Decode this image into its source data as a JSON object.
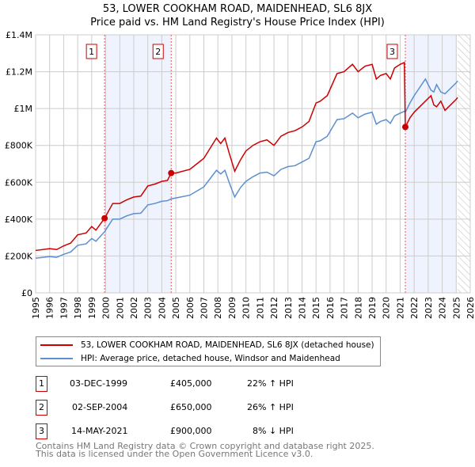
{
  "chart_data": {
    "type": "line",
    "title": "53, LOWER COOKHAM ROAD, MAIDENHEAD, SL6 8JX",
    "subtitle": "Price paid vs. HM Land Registry's House Price Index (HPI)",
    "xlim": [
      1995,
      2026
    ],
    "ylim": [
      0,
      1400000
    ],
    "x_ticks": [
      "1995",
      "1996",
      "1997",
      "1998",
      "1999",
      "2000",
      "2001",
      "2002",
      "2003",
      "2004",
      "2005",
      "2006",
      "2007",
      "2008",
      "2009",
      "2010",
      "2011",
      "2012",
      "2013",
      "2014",
      "2015",
      "2016",
      "2017",
      "2018",
      "2019",
      "2020",
      "2021",
      "2022",
      "2023",
      "2024",
      "2025",
      "2026"
    ],
    "y_ticks": [
      {
        "v": 0,
        "label": "£0"
      },
      {
        "v": 200000,
        "label": "£200K"
      },
      {
        "v": 400000,
        "label": "£400K"
      },
      {
        "v": 600000,
        "label": "£600K"
      },
      {
        "v": 800000,
        "label": "£800K"
      },
      {
        "v": 1000000,
        "label": "£1M"
      },
      {
        "v": 1200000,
        "label": "£1.2M"
      },
      {
        "v": 1400000,
        "label": "£1.4M"
      }
    ],
    "series": [
      {
        "name": "53, LOWER COOKHAM ROAD, MAIDENHEAD, SL6 8JX (detached house)",
        "color": "#cc0000",
        "x": [
          1995,
          1996,
          1996.5,
          1997,
          1997.5,
          1998,
          1998.6,
          1999,
          1999.3,
          1999.92,
          2000.5,
          2001,
          2001.5,
          2002,
          2002.5,
          2003,
          2003.5,
          2004,
          2004.4,
          2004.67,
          2005,
          2006,
          2007,
          2007.9,
          2008.2,
          2008.5,
          2008.8,
          2009.2,
          2009.6,
          2010,
          2010.5,
          2011,
          2011.5,
          2012,
          2012.5,
          2013,
          2013.5,
          2014,
          2014.5,
          2015,
          2015.3,
          2015.8,
          2016.5,
          2017,
          2017.6,
          2018,
          2018.5,
          2019,
          2019.3,
          2019.6,
          2020,
          2020.3,
          2020.6,
          2021,
          2021.3,
          2021.37,
          2021.7,
          2022,
          2022.8,
          2023.2,
          2023.4,
          2023.6,
          2023.9,
          2024.2,
          2025,
          2025.1
        ],
        "y": [
          230000,
          240000,
          235000,
          255000,
          270000,
          315000,
          325000,
          360000,
          340000,
          405000,
          485000,
          485000,
          505000,
          520000,
          525000,
          580000,
          590000,
          605000,
          610000,
          650000,
          650000,
          670000,
          730000,
          840000,
          810000,
          840000,
          760000,
          660000,
          720000,
          770000,
          800000,
          820000,
          830000,
          800000,
          850000,
          870000,
          880000,
          900000,
          930000,
          1030000,
          1040000,
          1070000,
          1190000,
          1200000,
          1240000,
          1200000,
          1230000,
          1240000,
          1160000,
          1180000,
          1190000,
          1160000,
          1220000,
          1240000,
          1250000,
          900000,
          950000,
          980000,
          1040000,
          1070000,
          1020000,
          1010000,
          1040000,
          990000,
          1050000,
          1060000
        ]
      },
      {
        "name": "HPI: Average price, detached house, Windsor and Maidenhead",
        "color": "#5b8fd0",
        "x": [
          1995,
          1996,
          1996.5,
          1997,
          1997.5,
          1998,
          1998.6,
          1999,
          1999.3,
          1999.92,
          2000.5,
          2001,
          2001.5,
          2002,
          2002.5,
          2003,
          2003.5,
          2004,
          2004.4,
          2004.67,
          2005,
          2006,
          2007,
          2007.9,
          2008.2,
          2008.5,
          2008.8,
          2009.2,
          2009.6,
          2010,
          2010.5,
          2011,
          2011.5,
          2012,
          2012.5,
          2013,
          2013.5,
          2014,
          2014.5,
          2015,
          2015.3,
          2015.8,
          2016.5,
          2017,
          2017.6,
          2018,
          2018.5,
          2019,
          2019.3,
          2019.6,
          2020,
          2020.3,
          2020.6,
          2021,
          2021.3,
          2021.37,
          2021.7,
          2022,
          2022.8,
          2023.2,
          2023.4,
          2023.6,
          2023.9,
          2024.2,
          2025,
          2025.1
        ],
        "y": [
          188000,
          197000,
          193000,
          209000,
          222000,
          258000,
          266000,
          295000,
          280000,
          332000,
          400000,
          400000,
          418000,
          430000,
          432000,
          477000,
          485000,
          497000,
          500000,
          510000,
          515000,
          530000,
          575000,
          665000,
          645000,
          665000,
          600000,
          520000,
          570000,
          605000,
          630000,
          650000,
          655000,
          635000,
          670000,
          685000,
          690000,
          710000,
          730000,
          820000,
          825000,
          850000,
          940000,
          945000,
          975000,
          950000,
          970000,
          980000,
          915000,
          930000,
          940000,
          920000,
          960000,
          975000,
          985000,
          980000,
          1030000,
          1070000,
          1160000,
          1100000,
          1090000,
          1130000,
          1090000,
          1080000,
          1140000,
          1150000
        ]
      }
    ],
    "sales": [
      {
        "n": "1",
        "x": 1999.92,
        "y": 405000
      },
      {
        "n": "2",
        "x": 2004.67,
        "y": 650000
      },
      {
        "n": "3",
        "x": 2021.37,
        "y": 900000
      }
    ],
    "shaded_ranges": [
      [
        1999.92,
        2004.67
      ],
      [
        2021.37,
        2025.0
      ]
    ],
    "hatched_from": 2025.1,
    "legend_placement": "below"
  },
  "transactions": [
    {
      "n": "1",
      "date": "03-DEC-1999",
      "price": "£405,000",
      "hpi": "22% ↑ HPI"
    },
    {
      "n": "2",
      "date": "02-SEP-2004",
      "price": "£650,000",
      "hpi": "26% ↑ HPI"
    },
    {
      "n": "3",
      "date": "14-MAY-2021",
      "price": "£900,000",
      "hpi": "8% ↓ HPI"
    }
  ],
  "footer": [
    "Contains HM Land Registry data © Crown copyright and database right 2025.",
    "This data is licensed under the Open Government Licence v3.0."
  ]
}
